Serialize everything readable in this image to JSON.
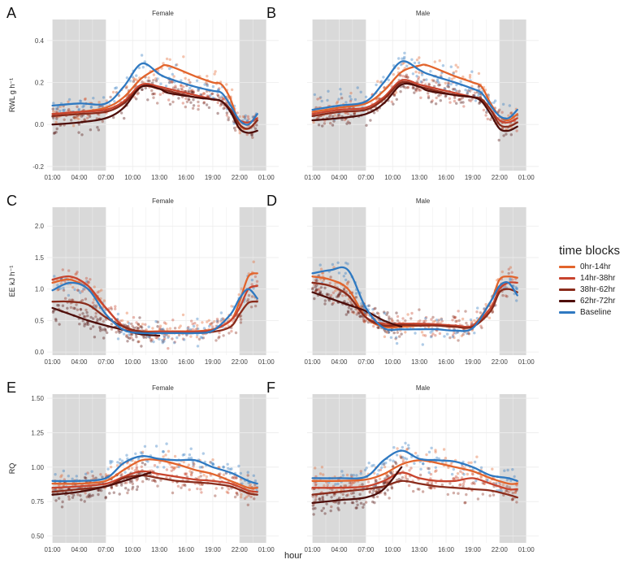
{
  "figure": {
    "x_axis_title": "hour",
    "x_ticks": [
      "01:00",
      "04:00",
      "07:00",
      "10:00",
      "13:00",
      "16:00",
      "19:00",
      "22:00",
      "01:00"
    ],
    "legend_title": "time blocks"
  },
  "legend": [
    {
      "label": "0hr-14hr",
      "color": "#e2642c"
    },
    {
      "label": "14hr-38hr",
      "color": "#c8442e"
    },
    {
      "label": "38hr-62hr",
      "color": "#8a2c1c"
    },
    {
      "label": "62hr-72hr",
      "color": "#4e0e0a"
    },
    {
      "label": "Baseline",
      "color": "#2f79c1"
    }
  ],
  "chart_data": [
    {
      "panel": "A",
      "type": "scatter",
      "title": "Female",
      "ylabel": "RWL g h⁻¹",
      "ylim": [
        -0.22,
        0.5
      ],
      "yticks": [
        "0.4",
        "0.2",
        "0.0",
        "-0.2"
      ],
      "ytick_values": [
        0.4,
        0.2,
        0.0,
        -0.2
      ],
      "show_xticks": true,
      "night_shading": [
        [
          0,
          6
        ],
        [
          21,
          24
        ]
      ],
      "series": [
        {
          "name": "0hr-14hr",
          "x": [
            0,
            3,
            6,
            8,
            10,
            12,
            13,
            16,
            18,
            19,
            20,
            21,
            22,
            23
          ],
          "y": [
            0.05,
            0.06,
            0.08,
            0.13,
            0.22,
            0.27,
            0.28,
            0.23,
            0.2,
            0.19,
            0.12,
            0.0,
            -0.02,
            0.02
          ]
        },
        {
          "name": "14hr-38hr",
          "x": [
            0,
            3,
            6,
            8,
            10,
            12,
            13,
            16,
            18,
            19,
            20,
            21,
            22,
            23
          ],
          "y": [
            0.05,
            0.06,
            0.07,
            0.11,
            0.19,
            0.18,
            0.17,
            0.14,
            0.12,
            0.11,
            0.07,
            0.02,
            0.01,
            0.03
          ]
        },
        {
          "name": "38hr-62hr",
          "x": [
            0,
            3,
            6,
            8,
            10,
            12,
            13,
            16,
            18,
            19,
            20,
            21,
            22,
            23
          ],
          "y": [
            0.04,
            0.05,
            0.06,
            0.1,
            0.18,
            0.17,
            0.16,
            0.13,
            0.12,
            0.11,
            0.07,
            0.0,
            -0.02,
            0.02
          ]
        },
        {
          "name": "62hr-72hr",
          "x": [
            0,
            3,
            6,
            8,
            10,
            12,
            13,
            16,
            18,
            19,
            20,
            21,
            22,
            23
          ],
          "y": [
            0.0,
            0.01,
            0.03,
            0.08,
            0.18,
            0.17,
            0.15,
            0.13,
            0.12,
            0.11,
            0.06,
            -0.02,
            -0.04,
            -0.03
          ]
        },
        {
          "name": "Baseline",
          "x": [
            0,
            3,
            6,
            8,
            10,
            12,
            13,
            16,
            18,
            19,
            20,
            21,
            22,
            23
          ],
          "y": [
            0.09,
            0.1,
            0.1,
            0.18,
            0.29,
            0.24,
            0.22,
            0.18,
            0.16,
            0.15,
            0.09,
            0.02,
            0.0,
            0.05
          ]
        }
      ]
    },
    {
      "panel": "B",
      "type": "scatter",
      "title": "Male",
      "ylabel": "",
      "ylim": [
        -0.22,
        0.5
      ],
      "yticks": [],
      "ytick_values": [
        0.4,
        0.2,
        0.0,
        -0.2
      ],
      "show_xticks": true,
      "night_shading": [
        [
          0,
          6
        ],
        [
          21,
          24
        ]
      ],
      "series": [
        {
          "name": "0hr-14hr",
          "x": [
            0,
            3,
            6,
            8,
            10,
            12,
            13,
            16,
            18,
            19,
            20,
            21,
            22,
            23
          ],
          "y": [
            0.06,
            0.08,
            0.1,
            0.16,
            0.25,
            0.28,
            0.28,
            0.23,
            0.2,
            0.18,
            0.1,
            0.04,
            0.02,
            0.05
          ]
        },
        {
          "name": "14hr-38hr",
          "x": [
            0,
            3,
            6,
            8,
            10,
            12,
            13,
            16,
            18,
            19,
            20,
            21,
            22,
            23
          ],
          "y": [
            0.05,
            0.07,
            0.08,
            0.13,
            0.21,
            0.19,
            0.18,
            0.15,
            0.13,
            0.12,
            0.07,
            0.02,
            0.01,
            0.03
          ]
        },
        {
          "name": "38hr-62hr",
          "x": [
            0,
            3,
            6,
            8,
            10,
            12,
            13,
            16,
            18,
            19,
            20,
            21,
            22,
            23
          ],
          "y": [
            0.04,
            0.06,
            0.07,
            0.12,
            0.2,
            0.18,
            0.17,
            0.14,
            0.13,
            0.12,
            0.07,
            0.0,
            -0.01,
            0.01
          ]
        },
        {
          "name": "62hr-72hr",
          "x": [
            0,
            3,
            6,
            8,
            10,
            12,
            13,
            16,
            18,
            19,
            20,
            21,
            22,
            23
          ],
          "y": [
            0.02,
            0.03,
            0.05,
            0.1,
            0.19,
            0.18,
            0.16,
            0.14,
            0.13,
            0.11,
            0.05,
            -0.02,
            -0.03,
            -0.01
          ]
        },
        {
          "name": "Baseline",
          "x": [
            0,
            3,
            6,
            8,
            10,
            12,
            13,
            16,
            18,
            19,
            20,
            21,
            22,
            23
          ],
          "y": [
            0.07,
            0.09,
            0.11,
            0.2,
            0.3,
            0.26,
            0.24,
            0.2,
            0.17,
            0.15,
            0.09,
            0.04,
            0.03,
            0.07
          ]
        }
      ]
    },
    {
      "panel": "C",
      "type": "scatter",
      "title": "Female",
      "ylabel": "EE kJ h⁻¹",
      "ylim": [
        -0.05,
        2.3
      ],
      "yticks": [
        "2.0",
        "1.5",
        "1.0",
        "0.5",
        "0.0"
      ],
      "ytick_values": [
        2.0,
        1.5,
        1.0,
        0.5,
        0.0
      ],
      "show_xticks": true,
      "night_shading": [
        [
          0,
          6
        ],
        [
          21,
          24
        ]
      ],
      "series": [
        {
          "name": "0hr-14hr",
          "x": [
            0,
            2,
            4,
            6,
            8,
            10,
            12,
            14,
            16,
            18,
            20,
            21,
            22,
            23
          ],
          "y": [
            1.1,
            1.15,
            1.0,
            0.7,
            0.4,
            0.33,
            0.33,
            0.33,
            0.33,
            0.36,
            0.5,
            0.8,
            1.2,
            1.25
          ]
        },
        {
          "name": "14hr-38hr",
          "x": [
            0,
            2,
            4,
            6,
            8,
            10,
            12,
            14,
            16,
            18,
            20,
            21,
            22,
            23
          ],
          "y": [
            1.15,
            1.2,
            1.05,
            0.7,
            0.4,
            0.32,
            0.32,
            0.32,
            0.32,
            0.35,
            0.5,
            0.7,
            1.0,
            1.05
          ]
        },
        {
          "name": "38hr-62hr",
          "x": [
            0,
            2,
            4,
            6,
            8,
            10,
            12,
            14,
            16,
            18,
            20,
            21,
            22,
            23
          ],
          "y": [
            0.8,
            0.8,
            0.75,
            0.55,
            0.4,
            0.32,
            0.3,
            0.3,
            0.3,
            0.32,
            0.4,
            0.6,
            0.78,
            0.8
          ]
        },
        {
          "name": "62hr-72hr",
          "x": [
            0,
            2,
            4,
            6,
            8,
            10,
            12
          ],
          "y": [
            0.7,
            0.6,
            0.5,
            0.42,
            0.35,
            0.28,
            0.26
          ]
        },
        {
          "name": "Baseline",
          "x": [
            0,
            2,
            4,
            6,
            8,
            10,
            12,
            14,
            16,
            18,
            20,
            21,
            22,
            23
          ],
          "y": [
            0.98,
            1.1,
            1.0,
            0.6,
            0.35,
            0.3,
            0.3,
            0.3,
            0.3,
            0.34,
            0.6,
            0.85,
            1.0,
            0.85
          ]
        }
      ]
    },
    {
      "panel": "D",
      "type": "scatter",
      "title": "Male",
      "ylabel": "",
      "ylim": [
        -0.05,
        2.3
      ],
      "yticks": [],
      "ytick_values": [
        2.0,
        1.5,
        1.0,
        0.5,
        0.0
      ],
      "show_xticks": true,
      "night_shading": [
        [
          0,
          6
        ],
        [
          21,
          24
        ]
      ],
      "series": [
        {
          "name": "0hr-14hr",
          "x": [
            0,
            2,
            4,
            6,
            8,
            10,
            12,
            14,
            16,
            18,
            20,
            21,
            22,
            23
          ],
          "y": [
            1.2,
            1.15,
            1.0,
            0.55,
            0.4,
            0.4,
            0.42,
            0.42,
            0.4,
            0.42,
            0.8,
            1.15,
            1.2,
            1.18
          ]
        },
        {
          "name": "14hr-38hr",
          "x": [
            0,
            2,
            4,
            6,
            8,
            10,
            12,
            14,
            16,
            18,
            20,
            21,
            22,
            23
          ],
          "y": [
            1.1,
            1.05,
            0.9,
            0.55,
            0.45,
            0.45,
            0.45,
            0.44,
            0.42,
            0.42,
            0.7,
            1.0,
            1.1,
            1.1
          ]
        },
        {
          "name": "38hr-62hr",
          "x": [
            0,
            2,
            4,
            6,
            8,
            10,
            12,
            14,
            16,
            18,
            20,
            21,
            22,
            23
          ],
          "y": [
            1.1,
            1.05,
            0.9,
            0.55,
            0.42,
            0.43,
            0.42,
            0.42,
            0.4,
            0.4,
            0.65,
            0.95,
            1.0,
            0.95
          ]
        },
        {
          "name": "62hr-72hr",
          "x": [
            0,
            2,
            4,
            6,
            8,
            10
          ],
          "y": [
            0.95,
            0.85,
            0.75,
            0.65,
            0.5,
            0.4
          ]
        },
        {
          "name": "Baseline",
          "x": [
            0,
            2,
            4,
            6,
            8,
            10,
            12,
            14,
            16,
            18,
            20,
            21,
            22,
            23
          ],
          "y": [
            1.25,
            1.3,
            1.3,
            0.7,
            0.38,
            0.36,
            0.36,
            0.36,
            0.34,
            0.38,
            0.8,
            1.05,
            1.1,
            0.9
          ]
        }
      ]
    },
    {
      "panel": "E",
      "type": "scatter",
      "title": "Female",
      "ylabel": "RQ",
      "ylim": [
        0.45,
        1.53
      ],
      "yticks": [
        "1.50",
        "1.25",
        "1.00",
        "0.75",
        "0.50"
      ],
      "ytick_values": [
        1.5,
        1.25,
        1.0,
        0.75,
        0.5
      ],
      "show_xticks": true,
      "night_shading": [
        [
          0,
          6
        ],
        [
          21,
          24
        ]
      ],
      "series": [
        {
          "name": "0hr-14hr",
          "x": [
            0,
            3,
            6,
            8,
            10,
            12,
            14,
            16,
            18,
            20,
            22,
            23
          ],
          "y": [
            0.88,
            0.88,
            0.9,
            0.98,
            1.05,
            1.05,
            1.02,
            0.98,
            0.95,
            0.9,
            0.85,
            0.85
          ]
        },
        {
          "name": "14hr-38hr",
          "x": [
            0,
            3,
            6,
            8,
            10,
            12,
            14,
            16,
            18,
            20,
            22,
            23
          ],
          "y": [
            0.85,
            0.86,
            0.88,
            0.93,
            0.97,
            0.95,
            0.93,
            0.91,
            0.9,
            0.88,
            0.83,
            0.82
          ]
        },
        {
          "name": "38hr-62hr",
          "x": [
            0,
            3,
            6,
            8,
            10,
            12,
            14,
            16,
            18,
            20,
            22,
            23
          ],
          "y": [
            0.82,
            0.84,
            0.86,
            0.92,
            0.94,
            0.92,
            0.9,
            0.89,
            0.88,
            0.86,
            0.81,
            0.8
          ]
        },
        {
          "name": "62hr-72hr",
          "x": [
            0,
            3,
            6,
            8,
            10,
            11
          ],
          "y": [
            0.8,
            0.82,
            0.86,
            0.9,
            0.94,
            0.96
          ]
        },
        {
          "name": "Baseline",
          "x": [
            0,
            3,
            6,
            8,
            10,
            12,
            14,
            16,
            18,
            20,
            22,
            23
          ],
          "y": [
            0.9,
            0.9,
            0.92,
            1.03,
            1.08,
            1.06,
            1.05,
            1.05,
            1.0,
            0.96,
            0.9,
            0.88
          ]
        }
      ]
    },
    {
      "panel": "F",
      "type": "scatter",
      "title": "Male",
      "ylabel": "",
      "ylim": [
        0.45,
        1.53
      ],
      "yticks": [],
      "ytick_values": [
        1.5,
        1.25,
        1.0,
        0.75,
        0.5
      ],
      "show_xticks": true,
      "night_shading": [
        [
          0,
          6
        ],
        [
          21,
          24
        ]
      ],
      "series": [
        {
          "name": "0hr-14hr",
          "x": [
            0,
            3,
            6,
            8,
            10,
            12,
            14,
            16,
            18,
            20,
            22,
            23
          ],
          "y": [
            0.9,
            0.9,
            0.91,
            0.95,
            1.02,
            1.05,
            1.03,
            1.0,
            0.97,
            0.92,
            0.88,
            0.88
          ]
        },
        {
          "name": "14hr-38hr",
          "x": [
            0,
            3,
            6,
            8,
            10,
            12,
            14,
            16,
            18,
            20,
            22,
            23
          ],
          "y": [
            0.85,
            0.85,
            0.86,
            0.9,
            0.96,
            0.92,
            0.9,
            0.9,
            0.92,
            0.88,
            0.84,
            0.84
          ]
        },
        {
          "name": "38hr-62hr",
          "x": [
            0,
            3,
            6,
            8,
            10,
            12,
            14,
            16,
            18,
            20,
            22,
            23
          ],
          "y": [
            0.8,
            0.82,
            0.84,
            0.86,
            0.9,
            0.88,
            0.86,
            0.85,
            0.84,
            0.83,
            0.8,
            0.78
          ]
        },
        {
          "name": "62hr-72hr",
          "x": [
            0,
            3,
            6,
            8,
            10
          ],
          "y": [
            0.74,
            0.76,
            0.78,
            0.84,
            1.0
          ]
        },
        {
          "name": "Baseline",
          "x": [
            0,
            3,
            6,
            8,
            10,
            12,
            14,
            16,
            18,
            20,
            22,
            23
          ],
          "y": [
            0.92,
            0.92,
            0.93,
            1.05,
            1.12,
            1.06,
            1.05,
            1.04,
            1.0,
            0.94,
            0.92,
            0.9
          ]
        }
      ]
    }
  ]
}
